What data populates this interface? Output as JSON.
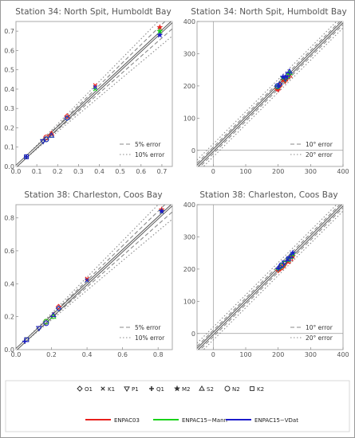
{
  "chart_data": [
    {
      "type": "scatter",
      "title": "Station 34: North Spit, Humboldt Bay",
      "xlim": [
        0,
        0.75
      ],
      "ylim": [
        0,
        0.75
      ],
      "xticks": [
        "0.0",
        "0.1",
        "0.2",
        "0.3",
        "0.4",
        "0.5",
        "0.6",
        "0.7"
      ],
      "yticks": [
        "0.0",
        "0.1",
        "0.2",
        "0.3",
        "0.4",
        "0.5",
        "0.6",
        "0.7"
      ],
      "tick_values": [
        0,
        0.1,
        0.2,
        0.3,
        0.4,
        0.5,
        0.6,
        0.7
      ],
      "bands": [
        {
          "label": "5% error",
          "style": "dash",
          "kind": "rel",
          "value": 0.05
        },
        {
          "label": "10% error",
          "style": "dot",
          "kind": "rel",
          "value": 0.1
        }
      ],
      "legend_placement": "bottom-right",
      "series": [
        {
          "name": "ENPAC03",
          "points": [
            {
              "c": "O1",
              "x": 0.245,
              "y": 0.26
            },
            {
              "c": "K1",
              "x": 0.38,
              "y": 0.42
            },
            {
              "c": "P1",
              "x": 0.13,
              "y": 0.13
            },
            {
              "c": "Q1",
              "x": 0.05,
              "y": 0.05
            },
            {
              "c": "M2",
              "x": 0.69,
              "y": 0.72
            },
            {
              "c": "S2",
              "x": 0.17,
              "y": 0.17
            },
            {
              "c": "N2",
              "x": 0.145,
              "y": 0.15
            },
            {
              "c": "K2",
              "x": 0.05,
              "y": 0.05
            }
          ]
        },
        {
          "name": "ENPAC15−Mann",
          "points": [
            {
              "c": "O1",
              "x": 0.245,
              "y": 0.25
            },
            {
              "c": "K1",
              "x": 0.38,
              "y": 0.4
            },
            {
              "c": "P1",
              "x": 0.13,
              "y": 0.13
            },
            {
              "c": "Q1",
              "x": 0.05,
              "y": 0.05
            },
            {
              "c": "M2",
              "x": 0.69,
              "y": 0.7
            },
            {
              "c": "S2",
              "x": 0.17,
              "y": 0.16
            },
            {
              "c": "N2",
              "x": 0.145,
              "y": 0.14
            },
            {
              "c": "K2",
              "x": 0.05,
              "y": 0.05
            }
          ]
        },
        {
          "name": "ENPAC15−VDat",
          "points": [
            {
              "c": "O1",
              "x": 0.245,
              "y": 0.25
            },
            {
              "c": "K1",
              "x": 0.38,
              "y": 0.41
            },
            {
              "c": "P1",
              "x": 0.13,
              "y": 0.13
            },
            {
              "c": "Q1",
              "x": 0.05,
              "y": 0.05
            },
            {
              "c": "M2",
              "x": 0.69,
              "y": 0.68
            },
            {
              "c": "S2",
              "x": 0.17,
              "y": 0.16
            },
            {
              "c": "N2",
              "x": 0.145,
              "y": 0.14
            },
            {
              "c": "K2",
              "x": 0.05,
              "y": 0.05
            }
          ]
        }
      ]
    },
    {
      "type": "scatter",
      "title": "Station 34: North Spit, Humboldt Bay",
      "xlim": [
        -50,
        400
      ],
      "ylim": [
        -50,
        400
      ],
      "xticks": [
        "0",
        "100",
        "200",
        "300",
        "400"
      ],
      "yticks": [
        "0",
        "100",
        "200",
        "300",
        "400"
      ],
      "tick_values": [
        0,
        100,
        200,
        300,
        400
      ],
      "bands": [
        {
          "label": "10° error",
          "style": "dash",
          "kind": "abs",
          "value": 10
        },
        {
          "label": "20° error",
          "style": "dot",
          "kind": "abs",
          "value": 20
        }
      ],
      "legend_placement": "bottom-right",
      "series": [
        {
          "name": "ENPAC03",
          "points": [
            {
              "c": "O1",
              "x": 205,
              "y": 200
            },
            {
              "c": "K1",
              "x": 225,
              "y": 220
            },
            {
              "c": "P1",
              "x": 222,
              "y": 215
            },
            {
              "c": "Q1",
              "x": 200,
              "y": 188
            },
            {
              "c": "M2",
              "x": 215,
              "y": 218
            },
            {
              "c": "S2",
              "x": 235,
              "y": 232
            },
            {
              "c": "N2",
              "x": 198,
              "y": 192
            },
            {
              "c": "K2",
              "x": 230,
              "y": 228
            }
          ]
        },
        {
          "name": "ENPAC15−Mann",
          "points": [
            {
              "c": "O1",
              "x": 205,
              "y": 205
            },
            {
              "c": "K1",
              "x": 225,
              "y": 226
            },
            {
              "c": "P1",
              "x": 222,
              "y": 220
            },
            {
              "c": "Q1",
              "x": 200,
              "y": 198
            },
            {
              "c": "M2",
              "x": 215,
              "y": 225
            },
            {
              "c": "S2",
              "x": 235,
              "y": 240
            },
            {
              "c": "N2",
              "x": 198,
              "y": 198
            },
            {
              "c": "K2",
              "x": 230,
              "y": 232
            }
          ]
        },
        {
          "name": "ENPAC15−VDat",
          "points": [
            {
              "c": "O1",
              "x": 205,
              "y": 205
            },
            {
              "c": "K1",
              "x": 225,
              "y": 228
            },
            {
              "c": "P1",
              "x": 222,
              "y": 222
            },
            {
              "c": "Q1",
              "x": 200,
              "y": 200
            },
            {
              "c": "M2",
              "x": 215,
              "y": 228
            },
            {
              "c": "S2",
              "x": 235,
              "y": 245
            },
            {
              "c": "N2",
              "x": 198,
              "y": 200
            },
            {
              "c": "K2",
              "x": 230,
              "y": 236
            }
          ]
        }
      ]
    },
    {
      "type": "scatter",
      "title": "Station 38: Charleston, Coos Bay",
      "xlim": [
        0,
        0.88
      ],
      "ylim": [
        0,
        0.88
      ],
      "xticks": [
        "0.0",
        "0.2",
        "0.4",
        "0.6",
        "0.8"
      ],
      "yticks": [
        "0.0",
        "0.2",
        "0.4",
        "0.6",
        "0.8"
      ],
      "tick_values": [
        0,
        0.2,
        0.4,
        0.6,
        0.8
      ],
      "bands": [
        {
          "label": "5% error",
          "style": "dash",
          "kind": "rel",
          "value": 0.05
        },
        {
          "label": "10% error",
          "style": "dot",
          "kind": "rel",
          "value": 0.1
        }
      ],
      "legend_placement": "bottom-right",
      "series": [
        {
          "name": "ENPAC03",
          "points": [
            {
              "c": "O1",
              "x": 0.24,
              "y": 0.26
            },
            {
              "c": "K1",
              "x": 0.4,
              "y": 0.43
            },
            {
              "c": "P1",
              "x": 0.13,
              "y": 0.13
            },
            {
              "c": "Q1",
              "x": 0.05,
              "y": 0.05
            },
            {
              "c": "M2",
              "x": 0.82,
              "y": 0.85
            },
            {
              "c": "S2",
              "x": 0.21,
              "y": 0.21
            },
            {
              "c": "N2",
              "x": 0.17,
              "y": 0.17
            },
            {
              "c": "K2",
              "x": 0.06,
              "y": 0.06
            }
          ]
        },
        {
          "name": "ENPAC15−Mann",
          "points": [
            {
              "c": "O1",
              "x": 0.24,
              "y": 0.25
            },
            {
              "c": "K1",
              "x": 0.4,
              "y": 0.42
            },
            {
              "c": "P1",
              "x": 0.13,
              "y": 0.13
            },
            {
              "c": "Q1",
              "x": 0.05,
              "y": 0.05
            },
            {
              "c": "M2",
              "x": 0.82,
              "y": 0.84
            },
            {
              "c": "S2",
              "x": 0.21,
              "y": 0.2
            },
            {
              "c": "N2",
              "x": 0.17,
              "y": 0.17
            },
            {
              "c": "K2",
              "x": 0.06,
              "y": 0.06
            }
          ]
        },
        {
          "name": "ENPAC15−VDat",
          "points": [
            {
              "c": "O1",
              "x": 0.24,
              "y": 0.25
            },
            {
              "c": "K1",
              "x": 0.4,
              "y": 0.42
            },
            {
              "c": "P1",
              "x": 0.13,
              "y": 0.13
            },
            {
              "c": "Q1",
              "x": 0.05,
              "y": 0.05
            },
            {
              "c": "M2",
              "x": 0.82,
              "y": 0.84
            },
            {
              "c": "S2",
              "x": 0.21,
              "y": 0.21
            },
            {
              "c": "N2",
              "x": 0.17,
              "y": 0.16
            },
            {
              "c": "K2",
              "x": 0.06,
              "y": 0.06
            }
          ]
        }
      ]
    },
    {
      "type": "scatter",
      "title": "Station 38: Charleston, Coos Bay",
      "xlim": [
        -50,
        400
      ],
      "ylim": [
        -50,
        400
      ],
      "xticks": [
        "0",
        "100",
        "200",
        "300",
        "400"
      ],
      "yticks": [
        "0",
        "100",
        "200",
        "300",
        "400"
      ],
      "tick_values": [
        0,
        100,
        200,
        300,
        400
      ],
      "bands": [
        {
          "label": "10° error",
          "style": "dash",
          "kind": "abs",
          "value": 10
        },
        {
          "label": "20° error",
          "style": "dot",
          "kind": "abs",
          "value": 20
        }
      ],
      "legend_placement": "bottom-right",
      "series": [
        {
          "name": "ENPAC03",
          "points": [
            {
              "c": "O1",
              "x": 205,
              "y": 200
            },
            {
              "c": "K1",
              "x": 230,
              "y": 222
            },
            {
              "c": "P1",
              "x": 220,
              "y": 212
            },
            {
              "c": "Q1",
              "x": 200,
              "y": 195
            },
            {
              "c": "M2",
              "x": 245,
              "y": 240
            },
            {
              "c": "S2",
              "x": 238,
              "y": 232
            },
            {
              "c": "N2",
              "x": 210,
              "y": 205
            },
            {
              "c": "K2",
              "x": 232,
              "y": 225
            }
          ]
        },
        {
          "name": "ENPAC15−Mann",
          "points": [
            {
              "c": "O1",
              "x": 205,
              "y": 205
            },
            {
              "c": "K1",
              "x": 230,
              "y": 228
            },
            {
              "c": "P1",
              "x": 220,
              "y": 218
            },
            {
              "c": "Q1",
              "x": 200,
              "y": 200
            },
            {
              "c": "M2",
              "x": 245,
              "y": 246
            },
            {
              "c": "S2",
              "x": 238,
              "y": 238
            },
            {
              "c": "N2",
              "x": 210,
              "y": 210
            },
            {
              "c": "K2",
              "x": 232,
              "y": 230
            }
          ]
        },
        {
          "name": "ENPAC15−VDat",
          "points": [
            {
              "c": "O1",
              "x": 205,
              "y": 207
            },
            {
              "c": "K1",
              "x": 230,
              "y": 230
            },
            {
              "c": "P1",
              "x": 220,
              "y": 220
            },
            {
              "c": "Q1",
              "x": 200,
              "y": 202
            },
            {
              "c": "M2",
              "x": 245,
              "y": 250
            },
            {
              "c": "S2",
              "x": 238,
              "y": 240
            },
            {
              "c": "N2",
              "x": 210,
              "y": 212
            },
            {
              "c": "K2",
              "x": 232,
              "y": 232
            }
          ]
        }
      ]
    }
  ],
  "legend": {
    "constituents": [
      "O1",
      "K1",
      "P1",
      "Q1",
      "M2",
      "S2",
      "N2",
      "K2"
    ],
    "models": [
      {
        "name": "ENPAC03",
        "color": "#e8201c"
      },
      {
        "name": "ENPAC15−Mann",
        "color": "#19d219"
      },
      {
        "name": "ENPAC15−VDat",
        "color": "#1c1ccc"
      }
    ]
  }
}
